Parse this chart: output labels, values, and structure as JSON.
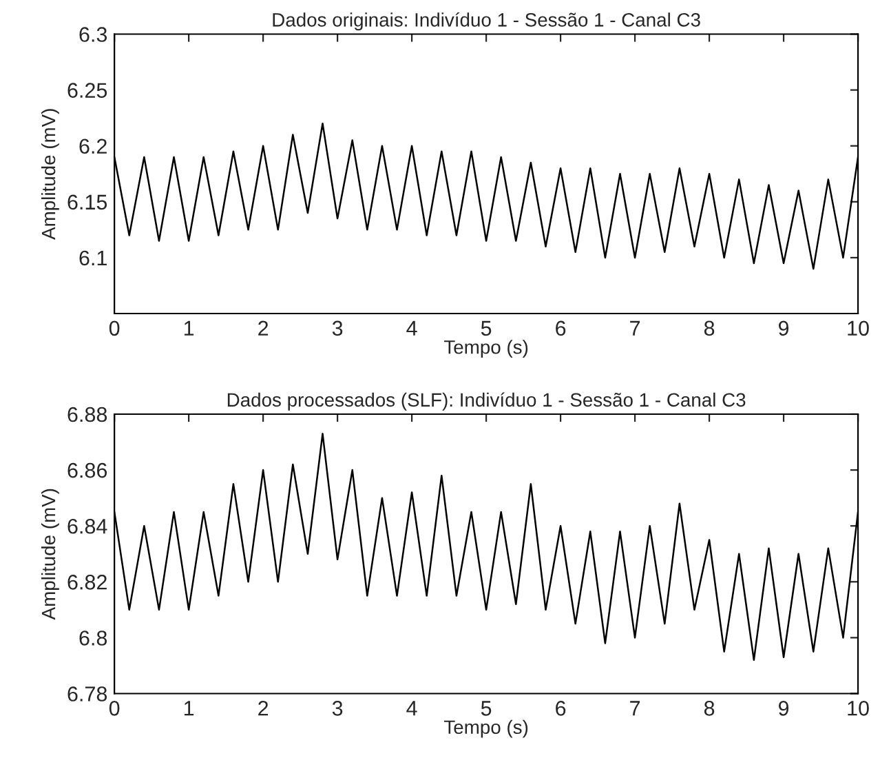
{
  "chart_data": [
    {
      "type": "line",
      "title": "Dados originais: Indivíduo 1 - Sessão 1 - Canal C3",
      "xlabel": "Tempo (s)",
      "ylabel": "Amplitude (mV)",
      "x": [
        0,
        0.2,
        0.4,
        0.6,
        0.8,
        1.0,
        1.2,
        1.4,
        1.6,
        1.8,
        2.0,
        2.2,
        2.4,
        2.6,
        2.8,
        3.0,
        3.2,
        3.4,
        3.6,
        3.8,
        4.0,
        4.2,
        4.4,
        4.6,
        4.8,
        5.0,
        5.2,
        5.4,
        5.6,
        5.8,
        6.0,
        6.2,
        6.4,
        6.6,
        6.8,
        7.0,
        7.2,
        7.4,
        7.6,
        7.8,
        8.0,
        8.2,
        8.4,
        8.6,
        8.8,
        9.0,
        9.2,
        9.4,
        9.6,
        9.8,
        10
      ],
      "series": [
        {
          "color": "#000000",
          "values": [
            6.19,
            6.12,
            6.19,
            6.115,
            6.19,
            6.115,
            6.19,
            6.12,
            6.195,
            6.125,
            6.2,
            6.125,
            6.21,
            6.14,
            6.22,
            6.135,
            6.205,
            6.125,
            6.2,
            6.125,
            6.2,
            6.12,
            6.195,
            6.12,
            6.195,
            6.115,
            6.19,
            6.115,
            6.185,
            6.11,
            6.18,
            6.105,
            6.18,
            6.1,
            6.175,
            6.1,
            6.175,
            6.105,
            6.18,
            6.11,
            6.175,
            6.1,
            6.17,
            6.095,
            6.165,
            6.095,
            6.16,
            6.09,
            6.17,
            6.1,
            6.19
          ]
        }
      ],
      "xlim": [
        0,
        10
      ],
      "xticks": [
        0,
        1,
        2,
        3,
        4,
        5,
        6,
        7,
        8,
        9,
        10
      ],
      "ylim": [
        6.05,
        6.3
      ],
      "yticks": [
        6.1,
        6.15,
        6.2,
        6.25,
        6.3
      ],
      "grid": false,
      "legend": false,
      "line_style": "solid",
      "marker": "none"
    },
    {
      "type": "line",
      "title": "Dados processados (SLF): Indivíduo 1 - Sessão 1 - Canal C3",
      "xlabel": "Tempo (s)",
      "ylabel": "Amplitude (mV)",
      "x": [
        0,
        0.2,
        0.4,
        0.6,
        0.8,
        1.0,
        1.2,
        1.4,
        1.6,
        1.8,
        2.0,
        2.2,
        2.4,
        2.6,
        2.8,
        3.0,
        3.2,
        3.4,
        3.6,
        3.8,
        4.0,
        4.2,
        4.4,
        4.6,
        4.8,
        5.0,
        5.2,
        5.4,
        5.6,
        5.8,
        6.0,
        6.2,
        6.4,
        6.6,
        6.8,
        7.0,
        7.2,
        7.4,
        7.6,
        7.8,
        8.0,
        8.2,
        8.4,
        8.6,
        8.8,
        9.0,
        9.2,
        9.4,
        9.6,
        9.8,
        10
      ],
      "series": [
        {
          "color": "#000000",
          "values": [
            6.845,
            6.81,
            6.84,
            6.81,
            6.845,
            6.81,
            6.845,
            6.815,
            6.855,
            6.82,
            6.86,
            6.82,
            6.862,
            6.83,
            6.873,
            6.828,
            6.86,
            6.815,
            6.85,
            6.815,
            6.852,
            6.815,
            6.858,
            6.815,
            6.845,
            6.81,
            6.845,
            6.812,
            6.855,
            6.81,
            6.84,
            6.805,
            6.838,
            6.798,
            6.838,
            6.8,
            6.84,
            6.805,
            6.848,
            6.81,
            6.835,
            6.795,
            6.83,
            6.792,
            6.832,
            6.793,
            6.83,
            6.795,
            6.832,
            6.8,
            6.845
          ]
        }
      ],
      "xlim": [
        0,
        10
      ],
      "xticks": [
        0,
        1,
        2,
        3,
        4,
        5,
        6,
        7,
        8,
        9,
        10
      ],
      "ylim": [
        6.78,
        6.88
      ],
      "yticks": [
        6.78,
        6.8,
        6.82,
        6.84,
        6.86,
        6.88
      ],
      "grid": false,
      "legend": false,
      "line_style": "solid",
      "marker": "none"
    }
  ]
}
